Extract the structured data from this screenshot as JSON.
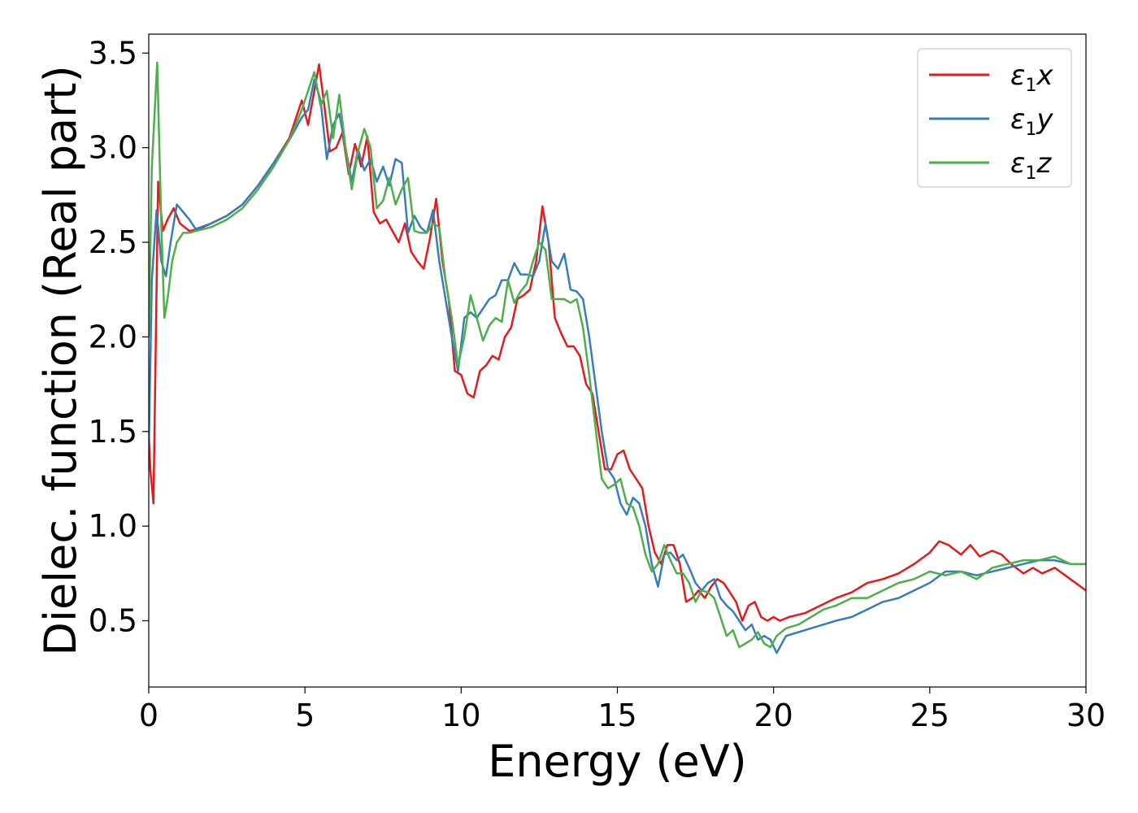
{
  "chart_data": {
    "type": "line",
    "title": "",
    "xlabel": "Energy (eV)",
    "ylabel": "Dielec. function (Real part)",
    "xlim": [
      0,
      30
    ],
    "ylim": [
      0.15,
      3.6
    ],
    "xticks": [
      0,
      5,
      10,
      15,
      20,
      25,
      30
    ],
    "xtick_labels": [
      "0",
      "5",
      "10",
      "15",
      "20",
      "25",
      "30"
    ],
    "yticks": [
      0.5,
      1.0,
      1.5,
      2.0,
      2.5,
      3.0,
      3.5
    ],
    "ytick_labels": [
      "0.5",
      "1.0",
      "1.5",
      "2.0",
      "2.5",
      "3.0",
      "3.5"
    ],
    "grid": false,
    "legend_position": "top-right",
    "series": [
      {
        "name": "ε1x",
        "legend_base": "ε",
        "legend_sub": "1",
        "legend_suffix": "x",
        "color": "#e41a1c",
        "x": [
          0,
          0.05,
          0.15,
          0.3,
          0.45,
          0.6,
          0.8,
          1.0,
          1.3,
          1.6,
          2.0,
          2.5,
          3.0,
          3.5,
          4.0,
          4.5,
          4.9,
          5.1,
          5.3,
          5.45,
          5.6,
          5.8,
          6.0,
          6.2,
          6.4,
          6.6,
          6.8,
          7.0,
          7.2,
          7.4,
          7.6,
          7.8,
          8.0,
          8.2,
          8.4,
          8.6,
          8.8,
          9.0,
          9.2,
          9.4,
          9.6,
          9.8,
          10.0,
          10.2,
          10.4,
          10.6,
          10.8,
          11.0,
          11.2,
          11.4,
          11.6,
          11.8,
          12.0,
          12.2,
          12.4,
          12.6,
          12.8,
          13.0,
          13.2,
          13.4,
          13.6,
          13.8,
          14.0,
          14.2,
          14.4,
          14.6,
          14.8,
          15.0,
          15.2,
          15.4,
          15.6,
          15.8,
          16.0,
          16.2,
          16.4,
          16.6,
          16.8,
          17.0,
          17.2,
          17.4,
          17.6,
          17.8,
          18.0,
          18.2,
          18.4,
          18.6,
          18.8,
          19.0,
          19.2,
          19.4,
          19.6,
          19.8,
          20.0,
          20.2,
          20.5,
          21.0,
          21.5,
          22.0,
          22.5,
          23.0,
          23.5,
          24.0,
          24.5,
          25.0,
          25.3,
          25.6,
          26.0,
          26.3,
          26.6,
          27.0,
          27.3,
          27.6,
          28.0,
          28.3,
          28.6,
          29.0,
          29.5,
          30.0
        ],
        "values": [
          1.5,
          1.3,
          1.12,
          2.82,
          2.56,
          2.62,
          2.68,
          2.6,
          2.56,
          2.57,
          2.6,
          2.64,
          2.7,
          2.8,
          2.92,
          3.05,
          3.25,
          3.12,
          3.3,
          3.44,
          3.25,
          2.98,
          3.0,
          3.08,
          2.86,
          3.02,
          2.9,
          3.06,
          2.66,
          2.6,
          2.62,
          2.56,
          2.5,
          2.6,
          2.45,
          2.4,
          2.36,
          2.52,
          2.73,
          2.4,
          2.2,
          1.82,
          1.8,
          1.7,
          1.68,
          1.82,
          1.85,
          1.9,
          1.88,
          2.0,
          2.05,
          2.2,
          2.22,
          2.25,
          2.4,
          2.69,
          2.5,
          2.1,
          2.02,
          1.95,
          1.95,
          1.9,
          1.75,
          1.7,
          1.5,
          1.3,
          1.3,
          1.38,
          1.4,
          1.3,
          1.25,
          1.2,
          1.0,
          0.86,
          0.8,
          0.9,
          0.9,
          0.8,
          0.6,
          0.62,
          0.66,
          0.62,
          0.68,
          0.72,
          0.7,
          0.65,
          0.6,
          0.5,
          0.58,
          0.6,
          0.52,
          0.5,
          0.52,
          0.5,
          0.52,
          0.54,
          0.58,
          0.62,
          0.65,
          0.7,
          0.72,
          0.75,
          0.8,
          0.86,
          0.92,
          0.9,
          0.85,
          0.9,
          0.84,
          0.87,
          0.85,
          0.8,
          0.75,
          0.78,
          0.75,
          0.78,
          0.72,
          0.66
        ]
      },
      {
        "name": "ε1y",
        "legend_base": "ε",
        "legend_sub": "1",
        "legend_suffix": "y",
        "color": "#377eb8",
        "x": [
          0,
          0.1,
          0.25,
          0.4,
          0.55,
          0.7,
          0.9,
          1.1,
          1.3,
          1.5,
          2.0,
          2.5,
          3.0,
          3.5,
          4.0,
          4.5,
          4.9,
          5.1,
          5.3,
          5.5,
          5.7,
          5.9,
          6.1,
          6.3,
          6.5,
          6.7,
          6.9,
          7.1,
          7.3,
          7.5,
          7.7,
          7.9,
          8.1,
          8.3,
          8.5,
          8.7,
          8.9,
          9.1,
          9.3,
          9.5,
          9.7,
          9.9,
          10.1,
          10.3,
          10.5,
          10.7,
          10.9,
          11.1,
          11.3,
          11.5,
          11.7,
          11.9,
          12.1,
          12.3,
          12.5,
          12.7,
          12.9,
          13.1,
          13.3,
          13.5,
          13.7,
          13.9,
          14.1,
          14.3,
          14.5,
          14.7,
          14.9,
          15.1,
          15.3,
          15.5,
          15.7,
          15.9,
          16.1,
          16.3,
          16.5,
          16.7,
          16.9,
          17.1,
          17.3,
          17.5,
          17.7,
          17.9,
          18.1,
          18.3,
          18.5,
          18.7,
          18.9,
          19.1,
          19.3,
          19.5,
          19.7,
          19.9,
          20.1,
          20.4,
          20.8,
          21.2,
          21.6,
          22.0,
          22.5,
          23.0,
          23.5,
          24.0,
          24.5,
          25.0,
          25.5,
          26.0,
          26.5,
          27.0,
          27.5,
          28.0,
          28.5,
          29.0,
          29.5,
          30.0
        ],
        "values": [
          1.4,
          2.3,
          2.67,
          2.4,
          2.32,
          2.5,
          2.7,
          2.66,
          2.62,
          2.57,
          2.6,
          2.64,
          2.7,
          2.8,
          2.92,
          3.04,
          3.16,
          3.2,
          3.36,
          3.25,
          2.94,
          3.12,
          3.18,
          3.0,
          2.82,
          2.99,
          2.88,
          2.94,
          2.82,
          2.9,
          2.8,
          2.94,
          2.92,
          2.55,
          2.64,
          2.58,
          2.55,
          2.67,
          2.4,
          2.2,
          2.0,
          1.82,
          2.1,
          2.13,
          2.1,
          2.15,
          2.2,
          2.22,
          2.3,
          2.3,
          2.39,
          2.33,
          2.33,
          2.32,
          2.4,
          2.6,
          2.4,
          2.36,
          2.44,
          2.25,
          2.24,
          2.2,
          2.0,
          1.75,
          1.5,
          1.3,
          1.25,
          1.12,
          1.06,
          1.15,
          1.12,
          1.0,
          0.8,
          0.68,
          0.85,
          0.86,
          0.82,
          0.85,
          0.78,
          0.7,
          0.66,
          0.7,
          0.72,
          0.62,
          0.58,
          0.55,
          0.5,
          0.45,
          0.48,
          0.4,
          0.42,
          0.4,
          0.33,
          0.42,
          0.44,
          0.46,
          0.48,
          0.5,
          0.52,
          0.56,
          0.6,
          0.62,
          0.66,
          0.7,
          0.76,
          0.76,
          0.74,
          0.76,
          0.78,
          0.8,
          0.82,
          0.82,
          0.8,
          0.8
        ]
      },
      {
        "name": "ε1z",
        "legend_base": "ε",
        "legend_sub": "1",
        "legend_suffix": "z",
        "color": "#4daf4a",
        "x": [
          0,
          0.1,
          0.27,
          0.4,
          0.5,
          0.6,
          0.75,
          0.9,
          1.1,
          1.3,
          1.5,
          2.0,
          2.5,
          3.0,
          3.5,
          4.0,
          4.5,
          4.9,
          5.1,
          5.3,
          5.5,
          5.7,
          5.9,
          6.1,
          6.3,
          6.5,
          6.7,
          6.9,
          7.1,
          7.3,
          7.5,
          7.7,
          7.9,
          8.1,
          8.3,
          8.5,
          8.7,
          8.9,
          9.1,
          9.3,
          9.5,
          9.7,
          9.9,
          10.1,
          10.3,
          10.5,
          10.7,
          10.9,
          11.1,
          11.3,
          11.5,
          11.7,
          11.9,
          12.1,
          12.3,
          12.5,
          12.7,
          12.9,
          13.1,
          13.3,
          13.5,
          13.7,
          13.9,
          14.1,
          14.3,
          14.5,
          14.7,
          14.9,
          15.1,
          15.3,
          15.5,
          15.7,
          15.9,
          16.1,
          16.3,
          16.5,
          16.7,
          16.9,
          17.1,
          17.3,
          17.5,
          17.7,
          17.9,
          18.1,
          18.3,
          18.5,
          18.7,
          18.9,
          19.1,
          19.3,
          19.5,
          19.7,
          19.9,
          20.1,
          20.4,
          20.8,
          21.2,
          21.6,
          22.0,
          22.5,
          23.0,
          23.5,
          24.0,
          24.5,
          25.0,
          25.5,
          26.0,
          26.5,
          27.0,
          27.5,
          28.0,
          28.5,
          29.0,
          29.5,
          30.0
        ],
        "values": [
          2.0,
          2.9,
          3.45,
          2.6,
          2.1,
          2.2,
          2.4,
          2.5,
          2.55,
          2.55,
          2.56,
          2.58,
          2.62,
          2.68,
          2.78,
          2.9,
          3.04,
          3.2,
          3.3,
          3.4,
          3.22,
          3.3,
          3.05,
          3.28,
          3.0,
          2.78,
          2.98,
          3.1,
          3.0,
          2.68,
          2.72,
          2.84,
          2.7,
          2.78,
          2.84,
          2.56,
          2.55,
          2.55,
          2.6,
          2.58,
          2.3,
          2.1,
          1.85,
          2.0,
          2.22,
          2.1,
          1.98,
          2.06,
          2.1,
          2.08,
          2.3,
          2.18,
          2.24,
          2.28,
          2.4,
          2.5,
          2.46,
          2.2,
          2.2,
          2.2,
          2.18,
          2.2,
          2.05,
          1.8,
          1.52,
          1.25,
          1.2,
          1.22,
          1.25,
          1.12,
          1.1,
          1.0,
          0.85,
          0.76,
          0.8,
          0.9,
          0.82,
          0.75,
          0.75,
          0.7,
          0.6,
          0.66,
          0.65,
          0.62,
          0.52,
          0.42,
          0.45,
          0.36,
          0.38,
          0.4,
          0.44,
          0.38,
          0.36,
          0.42,
          0.46,
          0.48,
          0.52,
          0.56,
          0.58,
          0.62,
          0.62,
          0.66,
          0.7,
          0.72,
          0.76,
          0.74,
          0.76,
          0.72,
          0.78,
          0.8,
          0.82,
          0.82,
          0.84,
          0.8,
          0.8
        ]
      }
    ]
  }
}
